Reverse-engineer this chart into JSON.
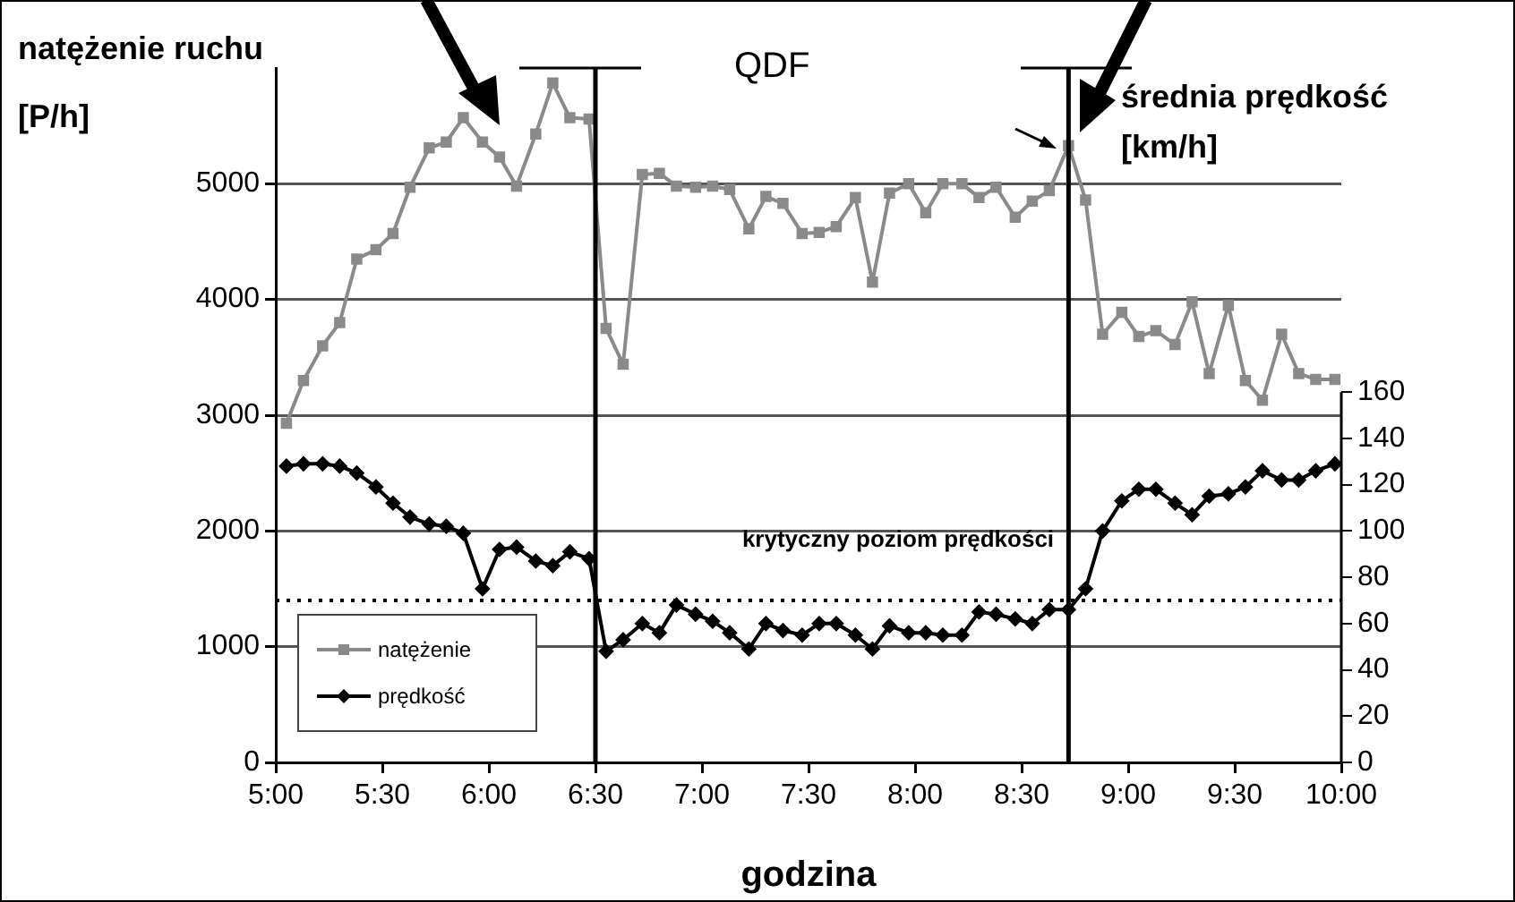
{
  "chart_data": {
    "type": "line",
    "xlabel": "godzina",
    "ylabel": "natężenie ruchu [P/h]",
    "y2label": "średnia prędkość [km/h]",
    "x": [
      5.05,
      5.13,
      5.22,
      5.3,
      5.38,
      5.47,
      5.55,
      5.63,
      5.72,
      5.8,
      5.88,
      5.97,
      6.05,
      6.13,
      6.22,
      6.3,
      6.38,
      6.47,
      6.55,
      6.63,
      6.72,
      6.8,
      6.88,
      6.97,
      7.05,
      7.13,
      7.22,
      7.3,
      7.38,
      7.47,
      7.55,
      7.63,
      7.72,
      7.8,
      7.88,
      7.97,
      8.05,
      8.13,
      8.22,
      8.3,
      8.38,
      8.47,
      8.55,
      8.63,
      8.72,
      8.8,
      8.88,
      8.97,
      9.05,
      9.13,
      9.22,
      9.3,
      9.38,
      9.47,
      9.55,
      9.63,
      9.72,
      9.8,
      9.88,
      9.97
    ],
    "series": [
      {
        "name": "natężenie",
        "color": "#8a8a8a",
        "marker": "square",
        "values": [
          2930,
          3300,
          3600,
          3800,
          4350,
          4430,
          4570,
          4970,
          5310,
          5360,
          5570,
          5360,
          5230,
          4980,
          5430,
          5870,
          5570,
          5560,
          3750,
          3440,
          5080,
          5090,
          4980,
          4970,
          4980,
          4950,
          4610,
          4890,
          4830,
          4570,
          4580,
          4630,
          4880,
          4150,
          4920,
          5000,
          4750,
          5000,
          5000,
          4880,
          4970,
          4710,
          4850,
          4940,
          5330,
          4860,
          3700,
          3890,
          3680,
          3730,
          3610,
          3980,
          3360,
          3950,
          3300,
          3130,
          3700,
          3360,
          3310,
          3310
        ]
      },
      {
        "name": "prędkość",
        "color": "#000000",
        "marker": "diamond",
        "axis": "y2",
        "values": [
          128,
          129,
          129,
          128,
          125,
          119,
          112,
          106,
          103,
          102,
          99,
          75,
          92,
          93,
          87,
          85,
          91,
          88,
          48,
          53,
          60,
          56,
          68,
          64,
          61,
          56,
          49,
          60,
          57,
          55,
          60,
          60,
          55,
          49,
          59,
          56,
          56,
          55,
          55,
          65,
          64,
          62,
          60,
          66,
          66,
          75,
          100,
          113,
          118,
          118,
          112,
          107,
          115,
          116,
          119,
          126,
          122,
          122,
          126,
          129
        ]
      }
    ],
    "xlim": [
      5,
      10
    ],
    "xticks": [
      {
        "value": 5,
        "label": "5:00"
      },
      {
        "value": 5.5,
        "label": "5:30"
      },
      {
        "value": 6,
        "label": "6:00"
      },
      {
        "value": 6.5,
        "label": "6:30"
      },
      {
        "value": 7,
        "label": "7:00"
      },
      {
        "value": 7.5,
        "label": "7:30"
      },
      {
        "value": 8,
        "label": "8:00"
      },
      {
        "value": 8.5,
        "label": "8:30"
      },
      {
        "value": 9,
        "label": "9:00"
      },
      {
        "value": 9.5,
        "label": "9:30"
      },
      {
        "value": 10,
        "label": "10:00"
      }
    ],
    "ylim": [
      0,
      6000
    ],
    "yticks": [
      0,
      1000,
      2000,
      3000,
      4000,
      5000
    ],
    "y2lim": [
      0,
      300
    ],
    "y2ticks": [
      0,
      20,
      40,
      60,
      80,
      100,
      120,
      140,
      160
    ],
    "ref_lines": [
      {
        "axis": "x",
        "value": 6.5,
        "color": "#000000"
      },
      {
        "axis": "x",
        "value": 8.72,
        "color": "#000000"
      },
      {
        "axis": "y2",
        "value": 70,
        "label": "krytyczny poziom prędkości",
        "color": "#000000",
        "line_style": "dotted"
      }
    ],
    "annotations": [
      "QDF"
    ],
    "grid": "y",
    "legend": "bottom left",
    "line_style": "solid"
  }
}
